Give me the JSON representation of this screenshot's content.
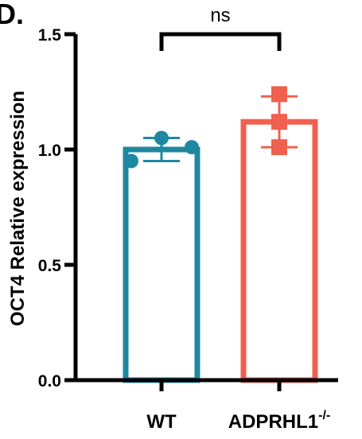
{
  "panel_label": "D.",
  "chart_data": {
    "type": "bar",
    "ylabel": "OCT4 Relative expression",
    "ylim": [
      0,
      1.5
    ],
    "yticks": [
      "0.0",
      "0.5",
      "1.0",
      "1.5"
    ],
    "categories": [
      {
        "name": "WT",
        "main": "WT",
        "sup": ""
      },
      {
        "name": "ADPRHL1-/-",
        "main": "ADPRHL1",
        "sup": "-/-"
      }
    ],
    "values": [
      1.0,
      1.12
    ],
    "errors": [
      0.05,
      0.11
    ],
    "points": [
      [
        0.95,
        1.05,
        1.01
      ],
      [
        1.24,
        1.12,
        1.01
      ]
    ],
    "markers": [
      "circle",
      "square"
    ],
    "colors": [
      "#1f88a1",
      "#f0604e"
    ],
    "significance": {
      "label": "ns",
      "between": [
        0,
        1
      ]
    }
  }
}
